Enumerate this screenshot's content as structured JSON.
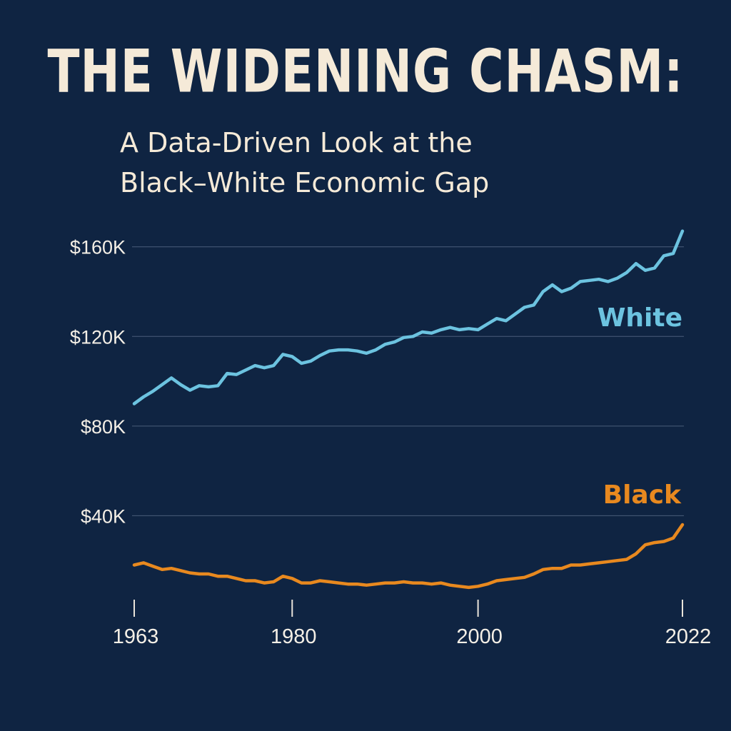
{
  "chart_data": {
    "type": "line",
    "title": "THE WIDENING CHASM:",
    "subtitle_lines": [
      "A Data-Driven Look at the",
      "Black–White Economic Gap"
    ],
    "xlabel": "",
    "ylabel": "",
    "xlim": [
      1963,
      2022
    ],
    "ylim": [
      0,
      165000
    ],
    "y_ticks": [
      {
        "value": 40000,
        "label": "$40K"
      },
      {
        "value": 80000,
        "label": "$80K"
      },
      {
        "value": 120000,
        "label": "$120K"
      },
      {
        "value": 160000,
        "label": "$160K"
      }
    ],
    "x_ticks": [
      {
        "value": 1963,
        "label": "1963"
      },
      {
        "value": 1980,
        "label": "1980"
      },
      {
        "value": 2000,
        "label": "2000"
      },
      {
        "value": 2022,
        "label": "2022"
      }
    ],
    "grid": true,
    "series": [
      {
        "name": "White",
        "color": "#6cc3e0",
        "points": [
          [
            1963,
            90000
          ],
          [
            1964,
            93000
          ],
          [
            1965,
            95500
          ],
          [
            1966,
            98500
          ],
          [
            1967,
            101500
          ],
          [
            1968,
            98500
          ],
          [
            1969,
            96000
          ],
          [
            1970,
            98000
          ],
          [
            1971,
            97500
          ],
          [
            1972,
            98000
          ],
          [
            1973,
            103500
          ],
          [
            1974,
            103000
          ],
          [
            1975,
            105000
          ],
          [
            1976,
            107000
          ],
          [
            1977,
            106000
          ],
          [
            1978,
            107000
          ],
          [
            1979,
            112000
          ],
          [
            1980,
            111000
          ],
          [
            1981,
            108000
          ],
          [
            1982,
            109000
          ],
          [
            1983,
            111500
          ],
          [
            1984,
            113500
          ],
          [
            1985,
            114000
          ],
          [
            1986,
            114000
          ],
          [
            1987,
            113500
          ],
          [
            1988,
            112500
          ],
          [
            1989,
            114000
          ],
          [
            1990,
            116500
          ],
          [
            1991,
            117500
          ],
          [
            1992,
            119500
          ],
          [
            1993,
            120000
          ],
          [
            1994,
            122000
          ],
          [
            1995,
            121500
          ],
          [
            1996,
            123000
          ],
          [
            1997,
            124000
          ],
          [
            1998,
            123000
          ],
          [
            1999,
            123500
          ],
          [
            2000,
            123000
          ],
          [
            2001,
            125500
          ],
          [
            2002,
            128000
          ],
          [
            2003,
            127000
          ],
          [
            2004,
            130000
          ],
          [
            2005,
            133000
          ],
          [
            2006,
            134000
          ],
          [
            2007,
            140000
          ],
          [
            2008,
            143000
          ],
          [
            2009,
            140000
          ],
          [
            2010,
            141500
          ],
          [
            2011,
            144500
          ],
          [
            2012,
            145000
          ],
          [
            2013,
            145500
          ],
          [
            2014,
            144500
          ],
          [
            2015,
            146000
          ],
          [
            2016,
            148500
          ],
          [
            2017,
            152500
          ],
          [
            2018,
            149500
          ],
          [
            2019,
            150500
          ],
          [
            2020,
            156000
          ],
          [
            2021,
            157000
          ],
          [
            2022,
            167000
          ]
        ]
      },
      {
        "name": "Black",
        "color": "#e8891f",
        "points": [
          [
            1963,
            18000
          ],
          [
            1964,
            19000
          ],
          [
            1965,
            17500
          ],
          [
            1966,
            16000
          ],
          [
            1967,
            16500
          ],
          [
            1968,
            15500
          ],
          [
            1969,
            14500
          ],
          [
            1970,
            14000
          ],
          [
            1971,
            14000
          ],
          [
            1972,
            13000
          ],
          [
            1973,
            13000
          ],
          [
            1974,
            12000
          ],
          [
            1975,
            11000
          ],
          [
            1976,
            11000
          ],
          [
            1977,
            10000
          ],
          [
            1978,
            10500
          ],
          [
            1979,
            13000
          ],
          [
            1980,
            12000
          ],
          [
            1981,
            10000
          ],
          [
            1982,
            10000
          ],
          [
            1983,
            11000
          ],
          [
            1984,
            10500
          ],
          [
            1985,
            10000
          ],
          [
            1986,
            9500
          ],
          [
            1987,
            9500
          ],
          [
            1988,
            9000
          ],
          [
            1989,
            9500
          ],
          [
            1990,
            10000
          ],
          [
            1991,
            10000
          ],
          [
            1992,
            10500
          ],
          [
            1993,
            10000
          ],
          [
            1994,
            10000
          ],
          [
            1995,
            9500
          ],
          [
            1996,
            10000
          ],
          [
            1997,
            9000
          ],
          [
            1998,
            8500
          ],
          [
            1999,
            8000
          ],
          [
            2000,
            8500
          ],
          [
            2001,
            9500
          ],
          [
            2002,
            11000
          ],
          [
            2003,
            11500
          ],
          [
            2004,
            12000
          ],
          [
            2005,
            12500
          ],
          [
            2006,
            14000
          ],
          [
            2007,
            16000
          ],
          [
            2008,
            16500
          ],
          [
            2009,
            16500
          ],
          [
            2010,
            18000
          ],
          [
            2011,
            18000
          ],
          [
            2012,
            18500
          ],
          [
            2013,
            19000
          ],
          [
            2014,
            19500
          ],
          [
            2015,
            20000
          ],
          [
            2016,
            20500
          ],
          [
            2017,
            23000
          ],
          [
            2018,
            27000
          ],
          [
            2019,
            28000
          ],
          [
            2020,
            28500
          ],
          [
            2021,
            30000
          ],
          [
            2022,
            36000
          ]
        ]
      }
    ]
  }
}
